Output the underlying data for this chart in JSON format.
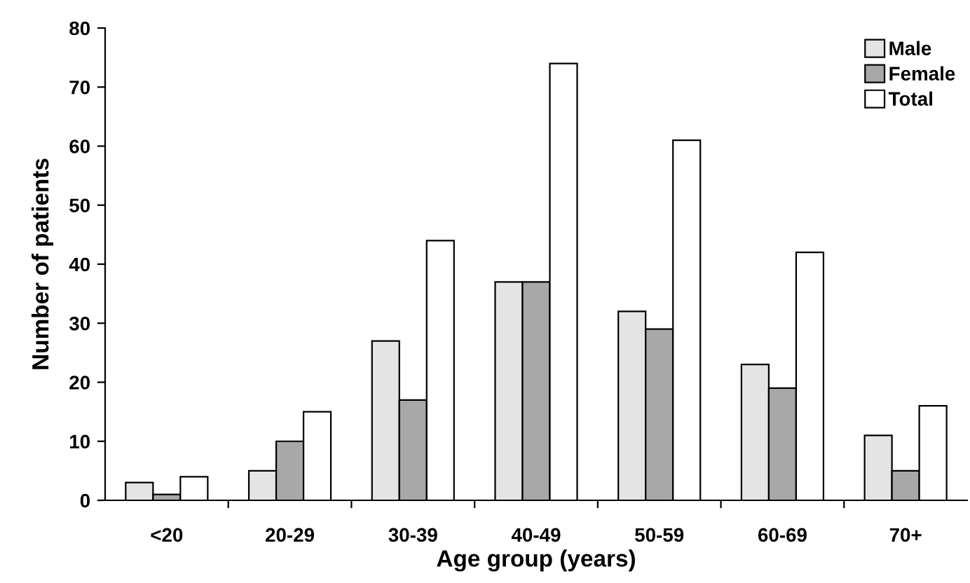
{
  "chart_data": {
    "type": "bar",
    "xlabel": "Age group (years)",
    "ylabel": "Number of patients",
    "categories": [
      "<20",
      "20-29",
      "30-39",
      "40-49",
      "50-59",
      "60-69",
      "70+"
    ],
    "series": [
      {
        "name": "Male",
        "color": "#e4e4e4",
        "values": [
          3,
          5,
          27,
          37,
          32,
          23,
          11
        ]
      },
      {
        "name": "Female",
        "color": "#a8a8a8",
        "values": [
          1,
          10,
          17,
          37,
          29,
          19,
          5
        ]
      },
      {
        "name": "Total",
        "color": "#ffffff",
        "values": [
          4,
          15,
          44,
          74,
          61,
          42,
          16
        ]
      }
    ],
    "ylim": [
      0,
      80
    ],
    "yticks": [
      0,
      10,
      20,
      30,
      40,
      50,
      60,
      70,
      80
    ],
    "grid": false,
    "legend": "top right"
  }
}
